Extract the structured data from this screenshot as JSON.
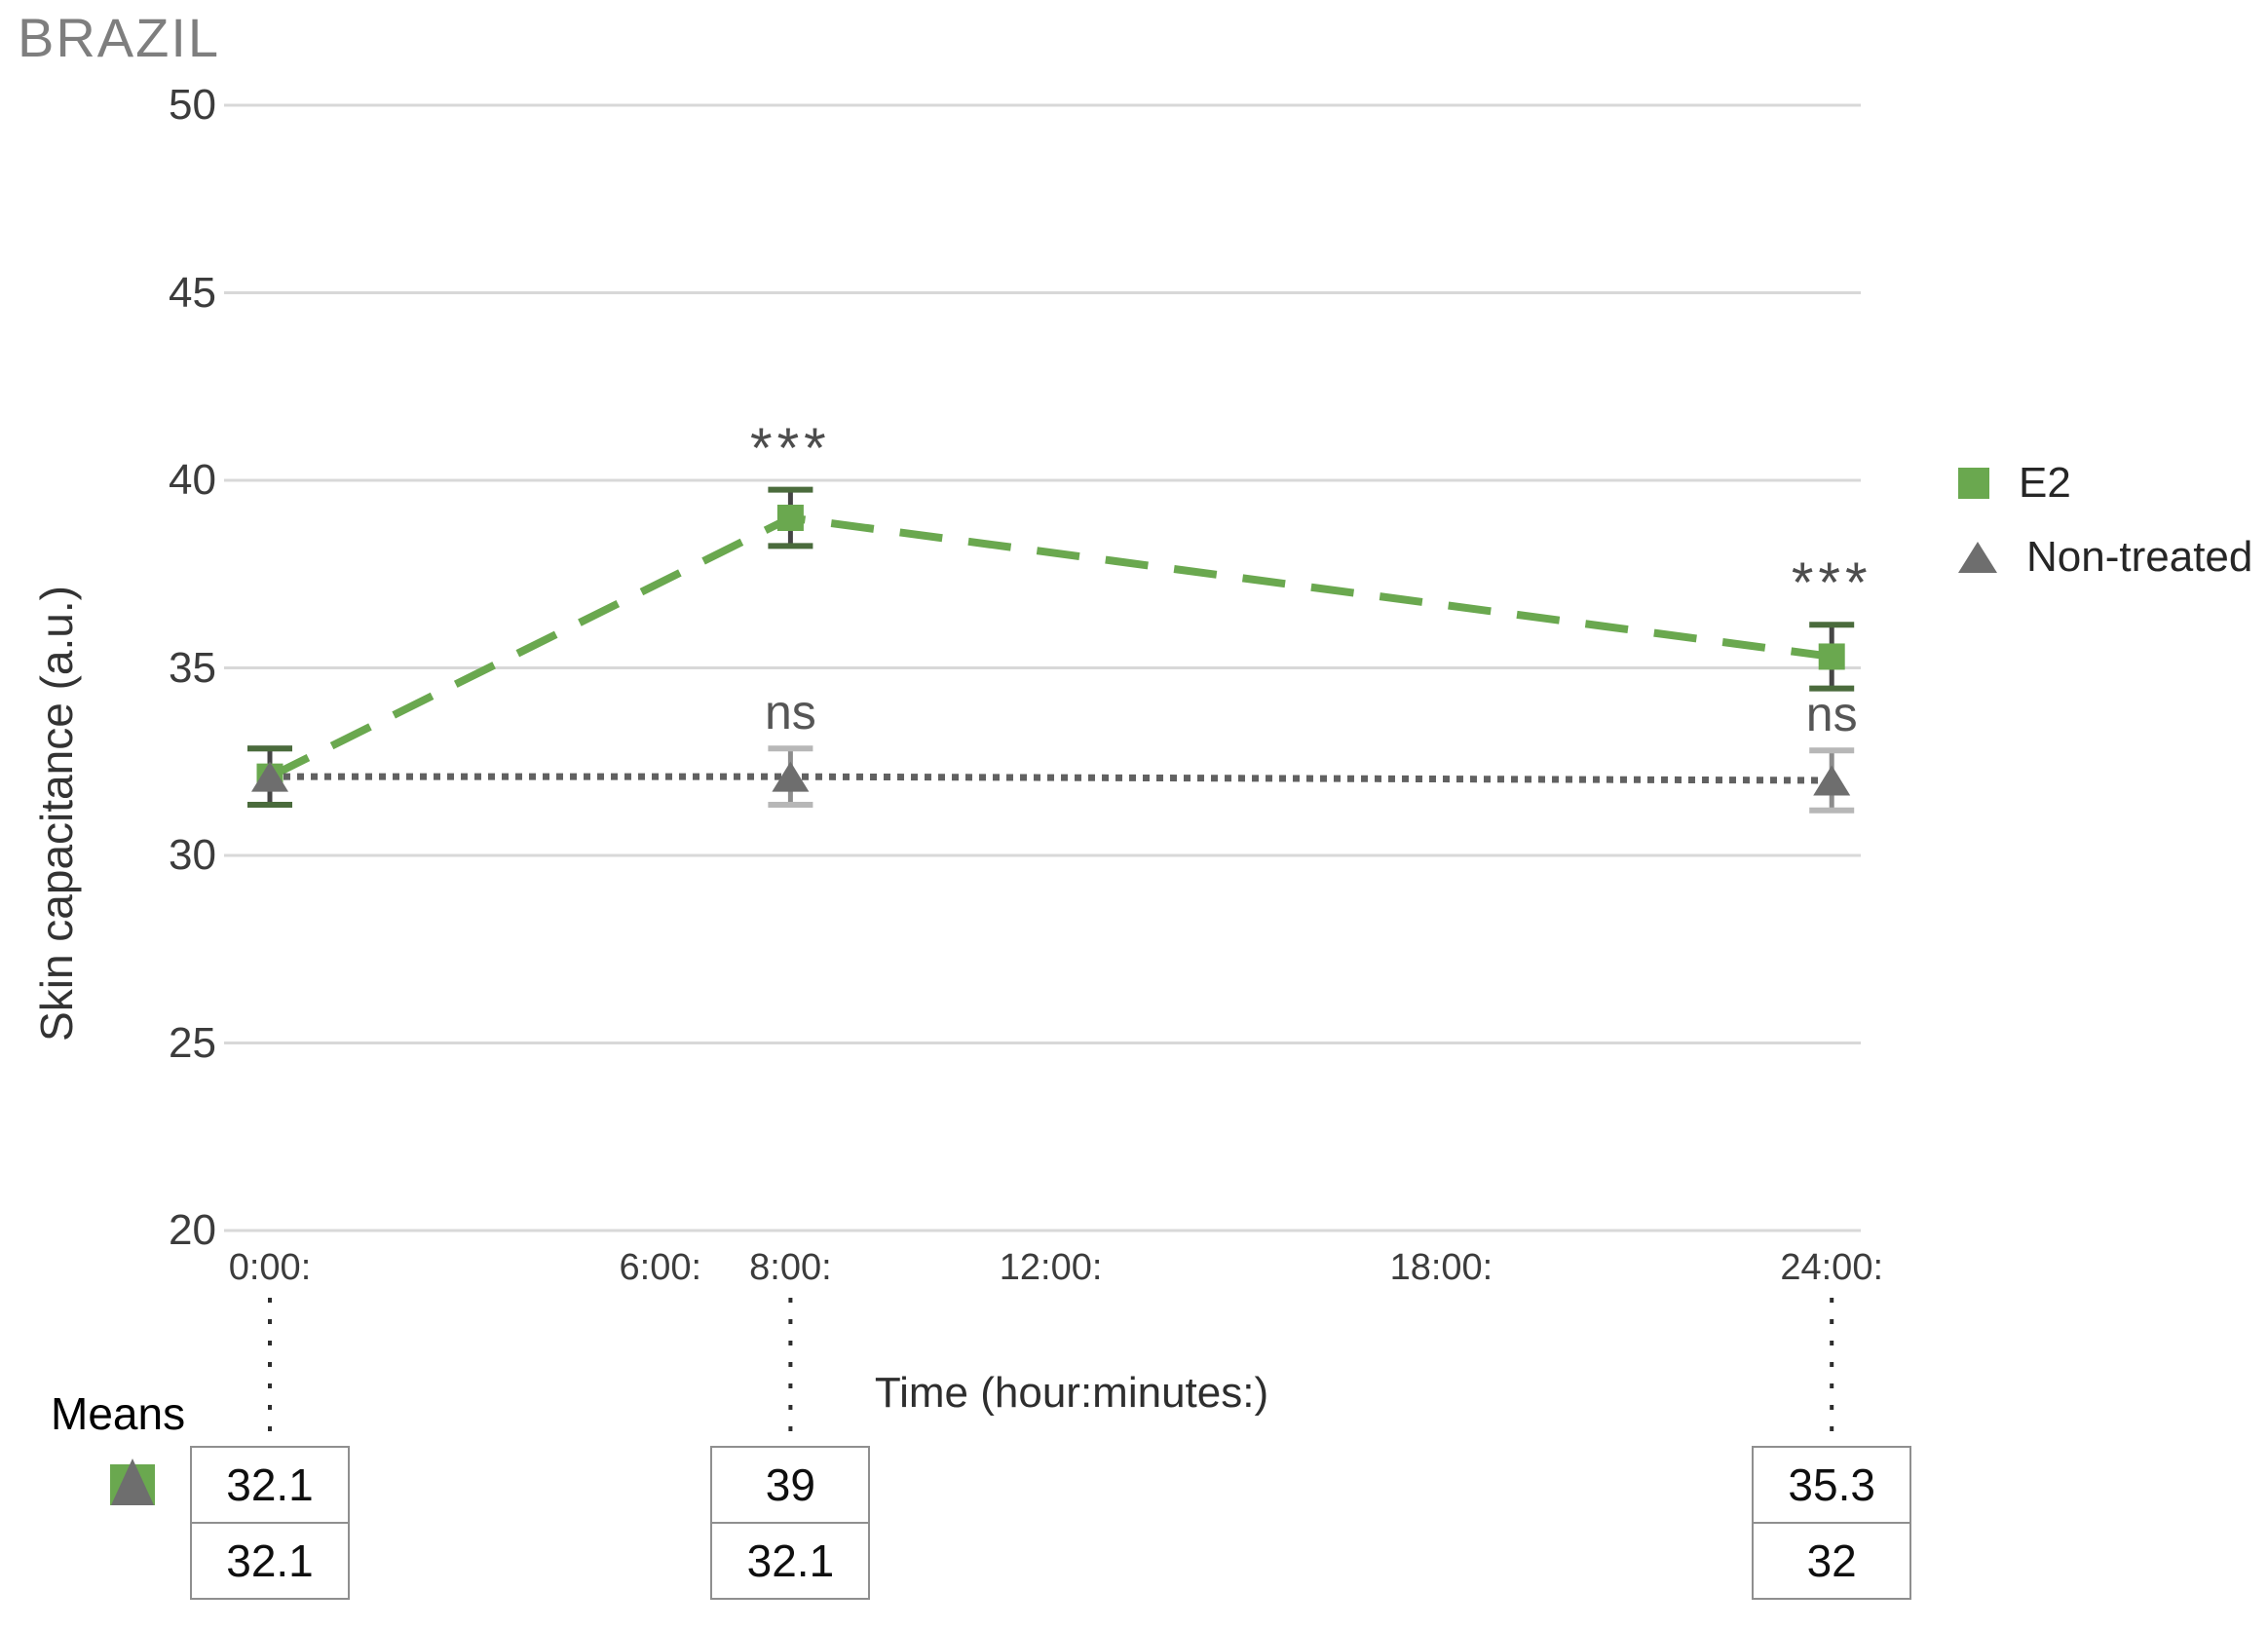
{
  "title": "BRAZIL",
  "y_axis": {
    "label": "Skin capacitance (a.u.)",
    "ticks": [
      {
        "label": "50",
        "value": 50
      },
      {
        "label": "45",
        "value": 45
      },
      {
        "label": "40",
        "value": 40
      },
      {
        "label": "35",
        "value": 35
      },
      {
        "label": "30",
        "value": 30
      },
      {
        "label": "25",
        "value": 25
      },
      {
        "label": "20",
        "value": 20
      }
    ]
  },
  "x_axis": {
    "label": "Time (hour:minutes:)",
    "ticks": [
      {
        "label": "0:00:",
        "hour": 0
      },
      {
        "label": "6:00:",
        "hour": 6
      },
      {
        "label": "8:00:",
        "hour": 8
      },
      {
        "label": "12:00:",
        "hour": 12
      },
      {
        "label": "18:00:",
        "hour": 18
      },
      {
        "label": "24:00:",
        "hour": 24
      }
    ]
  },
  "legend": {
    "position": "right",
    "items": [
      {
        "label": "E2",
        "marker": "square",
        "color": "#6aa84f"
      },
      {
        "label": "Non-treated",
        "marker": "triangle",
        "color": "#6e6e6e"
      }
    ]
  },
  "means": {
    "label": "Means",
    "columns": [
      {
        "hour": 0,
        "e2": "32.1",
        "nt": "32.1"
      },
      {
        "hour": 8,
        "e2": "39",
        "nt": "32.1"
      },
      {
        "hour": 24,
        "e2": "35.3",
        "nt": "32"
      }
    ]
  },
  "chart_data": {
    "type": "line",
    "title": "BRAZIL",
    "xlabel": "Time (hour:minutes:)",
    "ylabel": "Skin capacitance (a.u.)",
    "ylim": [
      20,
      50
    ],
    "y_ticks": [
      50,
      45,
      40,
      35,
      30,
      25,
      20
    ],
    "x_hours": [
      0,
      8,
      24
    ],
    "x_tick_hours": [
      0,
      6,
      8,
      12,
      18,
      24
    ],
    "x_tick_labels": [
      "0:00:",
      "6:00:",
      "8:00:",
      "12:00:",
      "18:00:",
      "24:00:"
    ],
    "grid": "horizontal",
    "legend_position": "right",
    "series": [
      {
        "name": "E2",
        "marker": "square",
        "line_style": "dashed",
        "color": "#6aa84f",
        "err_line_color": "#454545",
        "err_cap_color": "#4a6b3c",
        "values": [
          32.1,
          39,
          35.3
        ],
        "errors": [
          0.75,
          0.75,
          0.85
        ],
        "sig": [
          "",
          "***",
          "***"
        ]
      },
      {
        "name": "Non-treated",
        "marker": "triangle",
        "line_style": "dotted",
        "color": "#616161",
        "err_line_color": "#8c8c8c",
        "err_cap_color": "#b7b7b7",
        "values": [
          32.1,
          32.1,
          32
        ],
        "errors": [
          0.75,
          0.75,
          0.8
        ],
        "sig": [
          "",
          "ns",
          "ns"
        ]
      }
    ]
  }
}
